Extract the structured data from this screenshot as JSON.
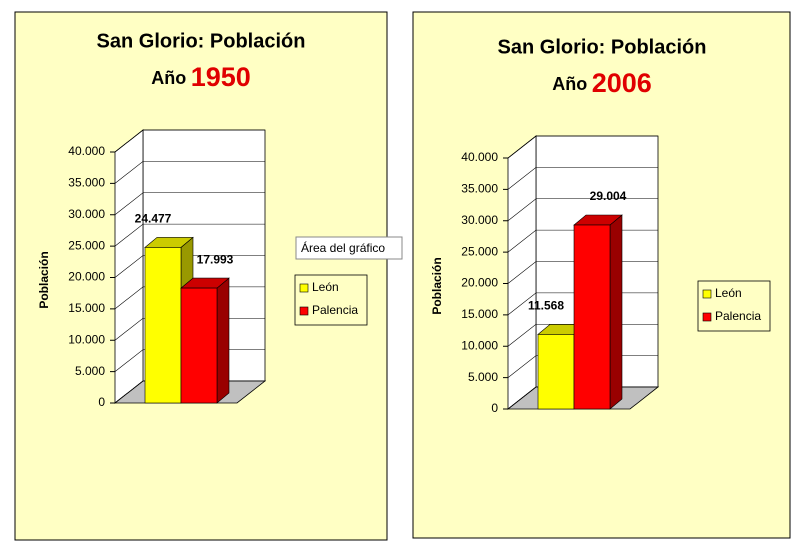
{
  "chart_data": [
    {
      "type": "bar",
      "title": "San Glorio: Población",
      "subtitle_label": "Año",
      "subtitle_year": "1950",
      "ylabel": "Población",
      "annotation": "Área del gráfico",
      "series": [
        {
          "name": "León",
          "color": "#ffff00",
          "values": [
            24477
          ],
          "value_labels": [
            "24.477"
          ]
        },
        {
          "name": "Palencia",
          "color": "#ff0000",
          "values": [
            17993
          ],
          "value_labels": [
            "17.993"
          ]
        }
      ],
      "ylim": [
        0,
        40000
      ],
      "yticks": [
        0,
        {
          "value": 5000,
          "label": "5.000"
        },
        {
          "value": 10000,
          "label": "10.000"
        },
        {
          "value": 15000,
          "label": "15.000"
        },
        {
          "value": 20000,
          "label": "20.000"
        },
        {
          "value": 25000,
          "label": "25.000"
        },
        {
          "value": 30000,
          "label": "30.000"
        },
        {
          "value": 35000,
          "label": "35.000"
        },
        {
          "value": 40000,
          "label": "40.000"
        }
      ],
      "grid": true,
      "legend": "right"
    },
    {
      "type": "bar",
      "title": "San Glorio: Población",
      "subtitle_label": "Año",
      "subtitle_year": "2006",
      "ylabel": "Población",
      "series": [
        {
          "name": "León",
          "color": "#ffff00",
          "values": [
            11568
          ],
          "value_labels": [
            "11.568"
          ]
        },
        {
          "name": "Palencia",
          "color": "#ff0000",
          "values": [
            29004
          ],
          "value_labels": [
            "29.004"
          ]
        }
      ],
      "ylim": [
        0,
        40000
      ],
      "yticks": [
        0,
        {
          "value": 5000,
          "label": "5.000"
        },
        {
          "value": 10000,
          "label": "10.000"
        },
        {
          "value": 15000,
          "label": "15.000"
        },
        {
          "value": 20000,
          "label": "20.000"
        },
        {
          "value": 25000,
          "label": "25.000"
        },
        {
          "value": 30000,
          "label": "30.000"
        },
        {
          "value": 35000,
          "label": "35.000"
        },
        {
          "value": 40000,
          "label": "40.000"
        }
      ],
      "grid": true,
      "legend": "right"
    }
  ]
}
